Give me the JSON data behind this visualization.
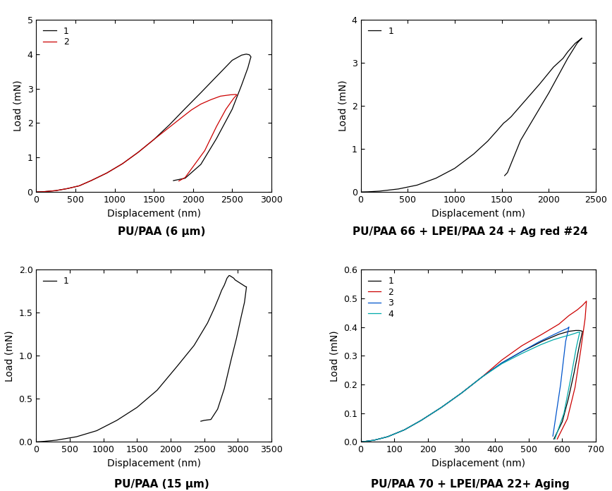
{
  "panels": [
    {
      "title": "PU/PAA (6 μm)",
      "xlabel": "Displacement (nm)",
      "ylabel": "Load (mN)",
      "xlim": [
        0,
        3000
      ],
      "ylim": [
        0,
        5
      ],
      "xticks": [
        0,
        500,
        1000,
        1500,
        2000,
        2500,
        3000
      ],
      "yticks": [
        0,
        1,
        2,
        3,
        4,
        5
      ],
      "curves": [
        {
          "label": "1",
          "color": "#000000",
          "x": [
            0,
            100,
            250,
            400,
            550,
            700,
            900,
            1100,
            1300,
            1500,
            1700,
            1900,
            2100,
            2300,
            2500,
            2620,
            2680,
            2720,
            2740,
            2730,
            2700,
            2620,
            2500,
            2300,
            2100,
            1900,
            1750
          ],
          "y": [
            0,
            0.01,
            0.04,
            0.1,
            0.18,
            0.33,
            0.55,
            0.82,
            1.15,
            1.52,
            1.95,
            2.42,
            2.88,
            3.35,
            3.82,
            3.97,
            4.0,
            3.98,
            3.92,
            3.85,
            3.6,
            3.1,
            2.4,
            1.55,
            0.8,
            0.4,
            0.33
          ]
        },
        {
          "label": "2",
          "color": "#cc0000",
          "x": [
            0,
            100,
            250,
            400,
            550,
            700,
            900,
            1100,
            1300,
            1500,
            1700,
            1850,
            1980,
            2100,
            2230,
            2350,
            2480,
            2550,
            2560,
            2520,
            2420,
            2300,
            2150,
            1900,
            1820
          ],
          "y": [
            0,
            0.01,
            0.04,
            0.1,
            0.18,
            0.33,
            0.55,
            0.82,
            1.15,
            1.52,
            1.88,
            2.15,
            2.38,
            2.55,
            2.68,
            2.78,
            2.82,
            2.83,
            2.82,
            2.72,
            2.4,
            1.9,
            1.2,
            0.42,
            0.32
          ]
        }
      ]
    },
    {
      "title": "PU/PAA 66 + LPEI/PAA 24 + Ag red #24",
      "xlabel": "Displacement (nm)",
      "ylabel": "Load (mN)",
      "xlim": [
        0,
        2500
      ],
      "ylim": [
        0,
        4
      ],
      "xticks": [
        0,
        500,
        1000,
        1500,
        2000,
        2500
      ],
      "yticks": [
        0,
        1,
        2,
        3,
        4
      ],
      "curves": [
        {
          "label": "1",
          "color": "#000000",
          "x": [
            0,
            80,
            200,
            400,
            600,
            800,
            1000,
            1200,
            1350,
            1440,
            1500,
            1520,
            1550,
            1600,
            1700,
            1900,
            2050,
            2150,
            2200,
            2280,
            2340,
            2350,
            2340,
            2300,
            2200,
            2000,
            1700,
            1560,
            1530
          ],
          "y": [
            0,
            0.005,
            0.02,
            0.07,
            0.16,
            0.32,
            0.55,
            0.88,
            1.18,
            1.4,
            1.55,
            1.6,
            1.65,
            1.75,
            2.0,
            2.5,
            2.9,
            3.1,
            3.25,
            3.45,
            3.55,
            3.57,
            3.55,
            3.45,
            3.1,
            2.3,
            1.2,
            0.45,
            0.38
          ]
        }
      ]
    },
    {
      "title": "PU/PAA (15 μm)",
      "xlabel": "Displacement (nm)",
      "ylabel": "Load (mN)",
      "xlim": [
        0,
        3500
      ],
      "ylim": [
        0,
        2.0
      ],
      "xticks": [
        0,
        500,
        1000,
        1500,
        2000,
        2500,
        3000,
        3500
      ],
      "yticks": [
        0.0,
        0.5,
        1.0,
        1.5,
        2.0
      ],
      "curves": [
        {
          "label": "1",
          "color": "#000000",
          "x": [
            0,
            100,
            300,
            600,
            900,
            1200,
            1500,
            1800,
            2100,
            2350,
            2550,
            2650,
            2720,
            2760,
            2800,
            2820,
            2830,
            2840,
            2850,
            2860,
            2870,
            2880,
            2900,
            2920,
            2940,
            2960,
            2980,
            3000,
            3020,
            3040,
            3060,
            3080,
            3100,
            3120,
            3130,
            3100,
            3050,
            2980,
            2900,
            2800,
            2700,
            2600,
            2500,
            2450
          ],
          "y": [
            0,
            0.005,
            0.02,
            0.06,
            0.13,
            0.25,
            0.4,
            0.6,
            0.88,
            1.12,
            1.38,
            1.55,
            1.68,
            1.76,
            1.82,
            1.86,
            1.88,
            1.9,
            1.91,
            1.92,
            1.93,
            1.93,
            1.92,
            1.91,
            1.9,
            1.88,
            1.87,
            1.86,
            1.85,
            1.84,
            1.83,
            1.82,
            1.81,
            1.8,
            1.8,
            1.62,
            1.45,
            1.2,
            0.95,
            0.62,
            0.38,
            0.26,
            0.25,
            0.24
          ]
        }
      ]
    },
    {
      "title": "PU/PAA 70 + LPEI/PAA 22+ Aging",
      "xlabel": "Displacement (nm)",
      "ylabel": "Load (mN)",
      "xlim": [
        0,
        700
      ],
      "ylim": [
        0,
        0.6
      ],
      "xticks": [
        0,
        100,
        200,
        300,
        400,
        500,
        600,
        700
      ],
      "yticks": [
        0.0,
        0.1,
        0.2,
        0.3,
        0.4,
        0.5,
        0.6
      ],
      "curves": [
        {
          "label": "1",
          "color": "#000000",
          "x": [
            0,
            15,
            40,
            80,
            130,
            180,
            240,
            300,
            360,
            420,
            480,
            540,
            590,
            620,
            640,
            650,
            655,
            660,
            650,
            635,
            618,
            600,
            575
          ],
          "y": [
            0,
            0.002,
            0.006,
            0.018,
            0.042,
            0.075,
            0.12,
            0.17,
            0.225,
            0.275,
            0.315,
            0.35,
            0.375,
            0.385,
            0.388,
            0.388,
            0.387,
            0.385,
            0.33,
            0.24,
            0.15,
            0.07,
            0.01
          ]
        },
        {
          "label": "2",
          "color": "#cc0000",
          "x": [
            0,
            15,
            40,
            80,
            130,
            180,
            240,
            300,
            360,
            420,
            480,
            540,
            590,
            620,
            645,
            660,
            668,
            672,
            668,
            655,
            638,
            615,
            585
          ],
          "y": [
            0,
            0.002,
            0.006,
            0.018,
            0.042,
            0.075,
            0.12,
            0.17,
            0.225,
            0.285,
            0.335,
            0.375,
            0.41,
            0.44,
            0.46,
            0.475,
            0.485,
            0.49,
            0.43,
            0.32,
            0.19,
            0.08,
            0.01
          ]
        },
        {
          "label": "3",
          "color": "#0055cc",
          "x": [
            0,
            15,
            40,
            80,
            130,
            180,
            240,
            300,
            360,
            420,
            480,
            530,
            565,
            590,
            605,
            615,
            620,
            610,
            595,
            572
          ],
          "y": [
            0,
            0.002,
            0.006,
            0.018,
            0.042,
            0.075,
            0.12,
            0.17,
            0.225,
            0.275,
            0.315,
            0.348,
            0.368,
            0.382,
            0.39,
            0.395,
            0.4,
            0.35,
            0.2,
            0.02
          ]
        },
        {
          "label": "4",
          "color": "#00aaaa",
          "x": [
            0,
            15,
            40,
            80,
            130,
            180,
            240,
            300,
            360,
            420,
            480,
            535,
            572,
            600,
            622,
            638,
            648,
            652,
            642,
            625,
            605,
            578
          ],
          "y": [
            0,
            0.002,
            0.006,
            0.018,
            0.042,
            0.075,
            0.12,
            0.17,
            0.225,
            0.272,
            0.308,
            0.338,
            0.355,
            0.365,
            0.372,
            0.378,
            0.382,
            0.382,
            0.33,
            0.22,
            0.1,
            0.01
          ]
        }
      ]
    }
  ],
  "title_fontsize": 11,
  "axis_label_fontsize": 10,
  "tick_fontsize": 9,
  "legend_fontsize": 9,
  "background_color": "#ffffff"
}
